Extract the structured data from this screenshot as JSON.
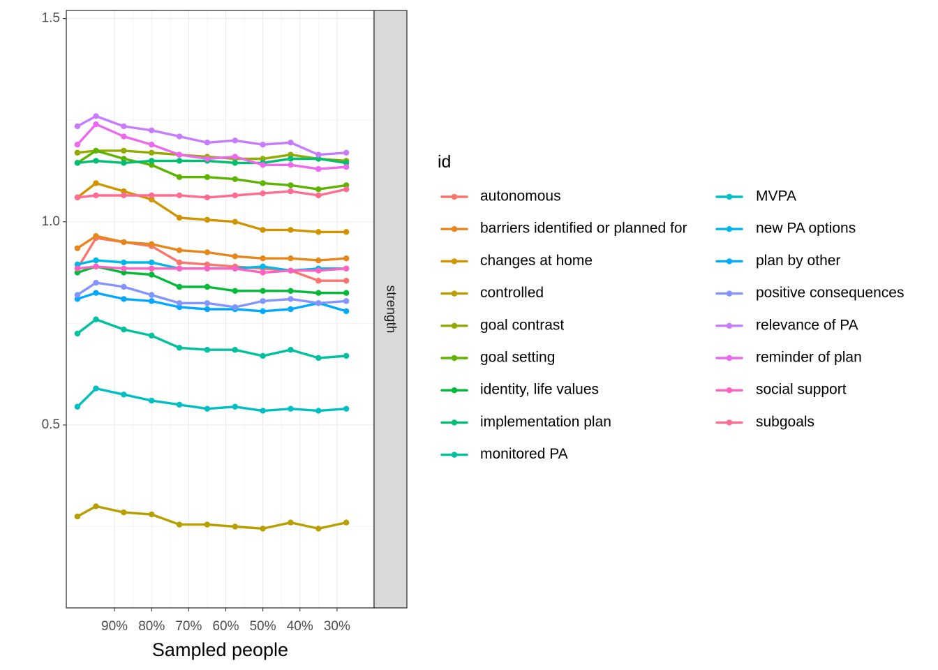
{
  "chart_data": {
    "type": "line",
    "title": "",
    "xlabel": "Sampled people",
    "ylabel": "",
    "facet_label": "strength",
    "legend_title": "id",
    "legend_position": "right",
    "grid": true,
    "theme": "bw",
    "ylim": [
      0.05,
      1.52
    ],
    "yticks": [
      0.5,
      1.0,
      1.5
    ],
    "ytick_labels": [
      "0.5",
      "1.0",
      "1.5"
    ],
    "x": [
      100,
      95,
      87.5,
      80,
      72.5,
      65,
      57.5,
      50,
      42.5,
      35,
      27.5
    ],
    "xlim": [
      103,
      20
    ],
    "xticks": [
      90,
      80,
      70,
      60,
      50,
      40,
      30
    ],
    "xtick_labels": [
      "90%",
      "80%",
      "70%",
      "60%",
      "50%",
      "40%",
      "30%"
    ],
    "series": [
      {
        "name": "autonomous",
        "color": "#F8766D",
        "values": [
          0.885,
          0.96,
          0.95,
          0.94,
          0.9,
          0.895,
          0.89,
          0.885,
          0.88,
          0.855,
          0.855
        ]
      },
      {
        "name": "barriers identified or planned for",
        "color": "#E7861B",
        "values": [
          0.935,
          0.965,
          0.95,
          0.945,
          0.93,
          0.925,
          0.915,
          0.91,
          0.91,
          0.905,
          0.91
        ]
      },
      {
        "name": "changes at home",
        "color": "#D09400",
        "values": [
          1.06,
          1.095,
          1.075,
          1.055,
          1.01,
          1.005,
          1.0,
          0.98,
          0.98,
          0.975,
          0.975
        ]
      },
      {
        "name": "controlled",
        "color": "#B79F00",
        "values": [
          0.275,
          0.3,
          0.285,
          0.28,
          0.255,
          0.255,
          0.25,
          0.245,
          0.26,
          0.245,
          0.26
        ]
      },
      {
        "name": "goal contrast",
        "color": "#93AA00",
        "values": [
          1.17,
          1.175,
          1.175,
          1.17,
          1.165,
          1.16,
          1.155,
          1.155,
          1.165,
          1.155,
          1.15
        ]
      },
      {
        "name": "goal setting",
        "color": "#5EB300",
        "values": [
          1.145,
          1.175,
          1.155,
          1.14,
          1.11,
          1.11,
          1.105,
          1.095,
          1.09,
          1.08,
          1.09
        ]
      },
      {
        "name": "identity, life values",
        "color": "#00BA38",
        "values": [
          0.875,
          0.89,
          0.875,
          0.87,
          0.84,
          0.84,
          0.83,
          0.83,
          0.83,
          0.825,
          0.825
        ]
      },
      {
        "name": "implementation plan",
        "color": "#00BF74",
        "values": [
          1.145,
          1.15,
          1.145,
          1.15,
          1.15,
          1.15,
          1.145,
          1.145,
          1.155,
          1.155,
          1.145
        ]
      },
      {
        "name": "monitored PA",
        "color": "#00C19F",
        "values": [
          0.725,
          0.76,
          0.735,
          0.72,
          0.69,
          0.685,
          0.685,
          0.67,
          0.685,
          0.665,
          0.67
        ]
      },
      {
        "name": "MVPA",
        "color": "#00BFC4",
        "values": [
          0.545,
          0.59,
          0.575,
          0.56,
          0.55,
          0.54,
          0.545,
          0.535,
          0.54,
          0.535,
          0.54
        ]
      },
      {
        "name": "new PA options",
        "color": "#00B8E7",
        "values": [
          0.895,
          0.905,
          0.9,
          0.9,
          0.885,
          0.885,
          0.885,
          0.89,
          0.88,
          0.885,
          0.885
        ]
      },
      {
        "name": "plan by other",
        "color": "#00A9FF",
        "values": [
          0.81,
          0.825,
          0.81,
          0.805,
          0.79,
          0.785,
          0.785,
          0.78,
          0.785,
          0.8,
          0.78
        ]
      },
      {
        "name": "positive consequences",
        "color": "#8494FF",
        "values": [
          0.82,
          0.85,
          0.84,
          0.82,
          0.8,
          0.8,
          0.79,
          0.805,
          0.81,
          0.8,
          0.805
        ]
      },
      {
        "name": "relevance of PA",
        "color": "#C77CFF",
        "values": [
          1.235,
          1.26,
          1.235,
          1.225,
          1.21,
          1.195,
          1.2,
          1.19,
          1.195,
          1.165,
          1.17
        ]
      },
      {
        "name": "reminder of plan",
        "color": "#ED68ED",
        "values": [
          1.19,
          1.24,
          1.21,
          1.19,
          1.165,
          1.155,
          1.16,
          1.14,
          1.14,
          1.13,
          1.135
        ]
      },
      {
        "name": "social support",
        "color": "#FF61C3",
        "values": [
          0.885,
          0.89,
          0.885,
          0.885,
          0.885,
          0.885,
          0.885,
          0.875,
          0.88,
          0.88,
          0.885
        ]
      },
      {
        "name": "subgoals",
        "color": "#FF6C91",
        "values": [
          1.06,
          1.065,
          1.065,
          1.065,
          1.065,
          1.06,
          1.065,
          1.07,
          1.075,
          1.065,
          1.08
        ]
      }
    ]
  }
}
